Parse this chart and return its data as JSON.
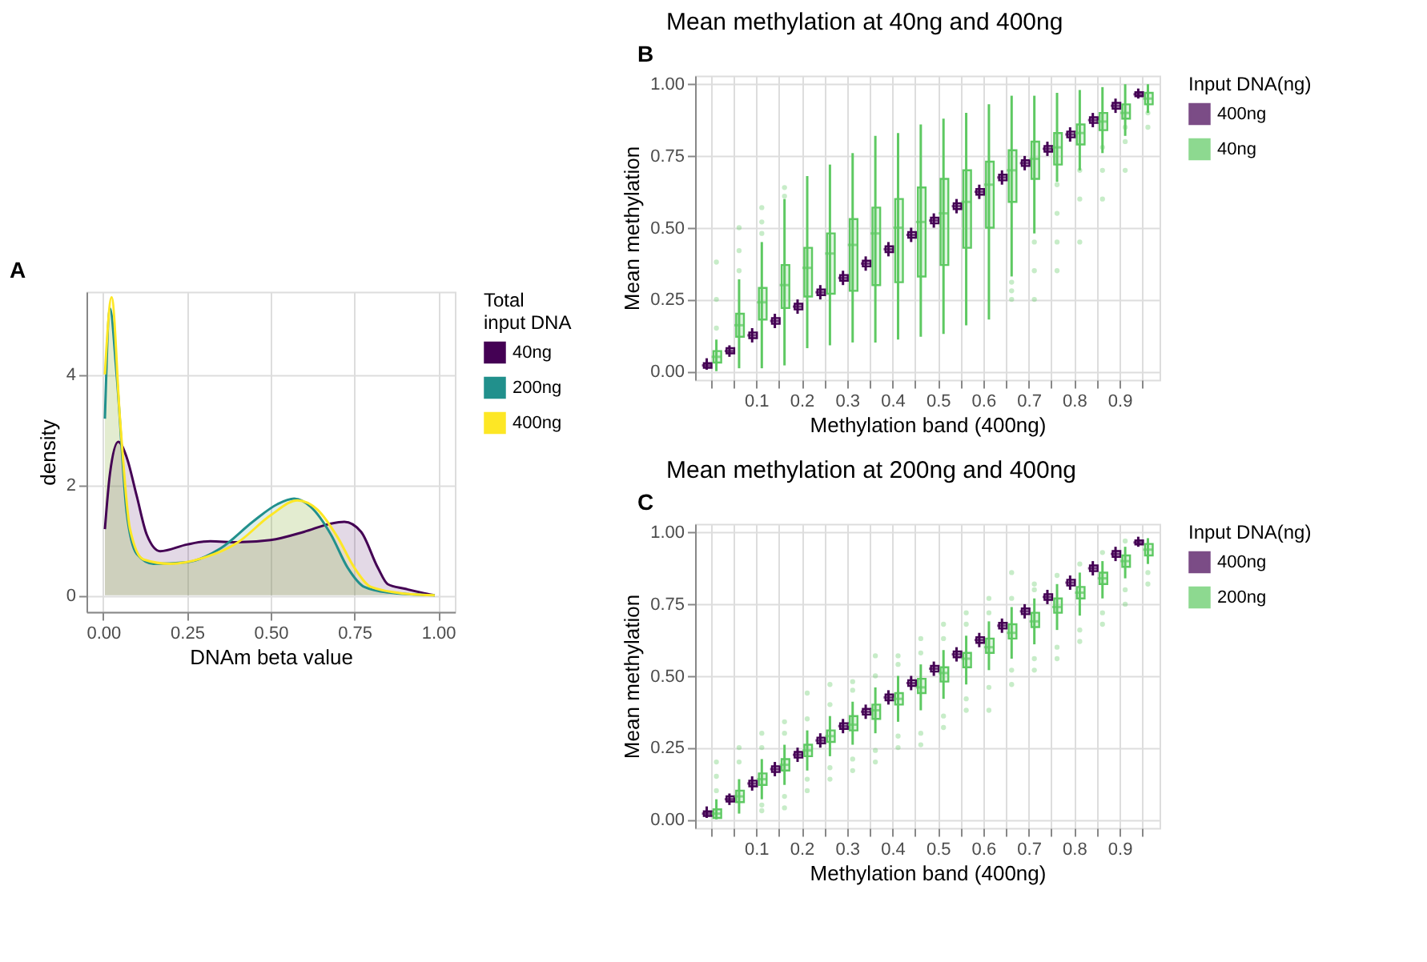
{
  "chart_data": [
    {
      "type": "area",
      "annotations": [
        "A"
      ],
      "xlabel": "DNAm beta value",
      "ylabel": "density",
      "legend_title": "Total input DNA",
      "legend": "right",
      "grid": true,
      "xlim": [
        -0.05,
        1.05
      ],
      "xticks": [
        {
          "value": 0,
          "label": "0.00"
        },
        {
          "value": 0.25,
          "label": "0.25"
        },
        {
          "value": 0.5,
          "label": "0.50"
        },
        {
          "value": 0.75,
          "label": "0.75"
        },
        {
          "value": 1,
          "label": "1.00"
        }
      ],
      "ylim": [
        -0.3,
        5.5
      ],
      "yticks": [
        0,
        2,
        4
      ],
      "series": [
        {
          "name": "40ng",
          "color": "#440154",
          "x": [
            0.005,
            0.02,
            0.045,
            0.07,
            0.1,
            0.13,
            0.17,
            0.25,
            0.32,
            0.4,
            0.5,
            0.6,
            0.68,
            0.72,
            0.77,
            0.82,
            0.85,
            0.9,
            0.95,
            0.99
          ],
          "values": [
            1.2,
            2.2,
            2.78,
            2.5,
            1.8,
            1.1,
            0.8,
            0.92,
            0.98,
            0.96,
            1.0,
            1.15,
            1.3,
            1.33,
            1.15,
            0.5,
            0.2,
            0.12,
            0.05,
            0.0
          ]
        },
        {
          "name": "200ng",
          "color": "#21908c",
          "x": [
            0.005,
            0.02,
            0.04,
            0.07,
            0.1,
            0.15,
            0.25,
            0.35,
            0.45,
            0.52,
            0.57,
            0.62,
            0.68,
            0.73,
            0.78,
            0.85,
            0.99
          ],
          "values": [
            3.2,
            5.2,
            4.0,
            1.5,
            0.75,
            0.57,
            0.6,
            0.85,
            1.35,
            1.65,
            1.75,
            1.6,
            1.1,
            0.5,
            0.15,
            0.05,
            0.0
          ]
        },
        {
          "name": "400ng",
          "color": "#fde725",
          "x": [
            0.005,
            0.025,
            0.05,
            0.08,
            0.12,
            0.2,
            0.3,
            0.4,
            0.5,
            0.58,
            0.64,
            0.7,
            0.75,
            0.8,
            0.9,
            0.99
          ],
          "values": [
            4.0,
            5.4,
            3.2,
            1.2,
            0.65,
            0.57,
            0.68,
            0.95,
            1.45,
            1.72,
            1.55,
            1.05,
            0.5,
            0.15,
            0.03,
            0.0
          ]
        }
      ]
    },
    {
      "type": "box",
      "annotations": [
        "B"
      ],
      "title": "Mean methylation at 40ng and 400ng",
      "xlabel": "Methylation band (400ng)",
      "ylabel": "Mean methylation",
      "legend_title": "Input DNA(ng)",
      "legend": "right",
      "grid": true,
      "categories": [
        null,
        null,
        "0.1",
        null,
        "0.2",
        null,
        "0.3",
        null,
        "0.4",
        null,
        "0.5",
        null,
        "0.6",
        null,
        "0.7",
        null,
        "0.8",
        null,
        "0.9",
        null
      ],
      "ylim": [
        -0.03,
        1.03
      ],
      "yticks": [
        {
          "value": 0,
          "label": "0.00"
        },
        {
          "value": 0.25,
          "label": "0.25"
        },
        {
          "value": 0.5,
          "label": "0.50"
        },
        {
          "value": 0.75,
          "label": "0.75"
        },
        {
          "value": 1,
          "label": "1.00"
        }
      ],
      "series": [
        {
          "name": "400ng",
          "color": "#440154",
          "boxes": [
            {
              "low": 0.005,
              "q1": 0.012,
              "median": 0.02,
              "q3": 0.028,
              "high": 0.045
            },
            {
              "low": 0.05,
              "q1": 0.062,
              "median": 0.07,
              "q3": 0.08,
              "high": 0.09
            },
            {
              "low": 0.1,
              "q1": 0.115,
              "median": 0.125,
              "q3": 0.135,
              "high": 0.15
            },
            {
              "low": 0.15,
              "q1": 0.165,
              "median": 0.175,
              "q3": 0.185,
              "high": 0.2
            },
            {
              "low": 0.2,
              "q1": 0.215,
              "median": 0.225,
              "q3": 0.235,
              "high": 0.25
            },
            {
              "low": 0.25,
              "q1": 0.265,
              "median": 0.275,
              "q3": 0.285,
              "high": 0.3
            },
            {
              "low": 0.3,
              "q1": 0.315,
              "median": 0.325,
              "q3": 0.335,
              "high": 0.35
            },
            {
              "low": 0.35,
              "q1": 0.365,
              "median": 0.375,
              "q3": 0.385,
              "high": 0.4
            },
            {
              "low": 0.4,
              "q1": 0.415,
              "median": 0.425,
              "q3": 0.435,
              "high": 0.45
            },
            {
              "low": 0.45,
              "q1": 0.465,
              "median": 0.475,
              "q3": 0.485,
              "high": 0.5
            },
            {
              "low": 0.5,
              "q1": 0.515,
              "median": 0.525,
              "q3": 0.535,
              "high": 0.55
            },
            {
              "low": 0.55,
              "q1": 0.565,
              "median": 0.575,
              "q3": 0.585,
              "high": 0.6
            },
            {
              "low": 0.6,
              "q1": 0.615,
              "median": 0.625,
              "q3": 0.635,
              "high": 0.65
            },
            {
              "low": 0.65,
              "q1": 0.665,
              "median": 0.675,
              "q3": 0.685,
              "high": 0.7
            },
            {
              "low": 0.7,
              "q1": 0.715,
              "median": 0.725,
              "q3": 0.735,
              "high": 0.75
            },
            {
              "low": 0.75,
              "q1": 0.765,
              "median": 0.775,
              "q3": 0.785,
              "high": 0.8
            },
            {
              "low": 0.8,
              "q1": 0.815,
              "median": 0.825,
              "q3": 0.835,
              "high": 0.85
            },
            {
              "low": 0.85,
              "q1": 0.865,
              "median": 0.875,
              "q3": 0.885,
              "high": 0.9
            },
            {
              "low": 0.9,
              "q1": 0.915,
              "median": 0.925,
              "q3": 0.935,
              "high": 0.95
            },
            {
              "low": 0.95,
              "q1": 0.958,
              "median": 0.965,
              "q3": 0.972,
              "high": 0.985
            }
          ]
        },
        {
          "name": "40ng",
          "color": "#5ec962",
          "boxes": [
            {
              "low": 0.0,
              "q1": 0.03,
              "median": 0.05,
              "q3": 0.07,
              "high": 0.11,
              "outliers": [
                0.15,
                0.25,
                0.38
              ]
            },
            {
              "low": 0.01,
              "q1": 0.12,
              "median": 0.16,
              "q3": 0.2,
              "high": 0.32,
              "outliers": [
                0.35,
                0.42,
                0.5
              ]
            },
            {
              "low": 0.01,
              "q1": 0.18,
              "median": 0.24,
              "q3": 0.29,
              "high": 0.45,
              "outliers": [
                0.48,
                0.52,
                0.57
              ]
            },
            {
              "low": 0.02,
              "q1": 0.22,
              "median": 0.3,
              "q3": 0.37,
              "high": 0.6,
              "outliers": [
                0.61,
                0.64
              ]
            },
            {
              "low": 0.08,
              "q1": 0.26,
              "median": 0.36,
              "q3": 0.43,
              "high": 0.68
            },
            {
              "low": 0.09,
              "q1": 0.27,
              "median": 0.41,
              "q3": 0.48,
              "high": 0.72
            },
            {
              "low": 0.1,
              "q1": 0.28,
              "median": 0.44,
              "q3": 0.53,
              "high": 0.76
            },
            {
              "low": 0.1,
              "q1": 0.3,
              "median": 0.48,
              "q3": 0.57,
              "high": 0.82
            },
            {
              "low": 0.11,
              "q1": 0.31,
              "median": 0.5,
              "q3": 0.6,
              "high": 0.83
            },
            {
              "low": 0.12,
              "q1": 0.33,
              "median": 0.52,
              "q3": 0.64,
              "high": 0.86
            },
            {
              "low": 0.13,
              "q1": 0.37,
              "median": 0.55,
              "q3": 0.67,
              "high": 0.88
            },
            {
              "low": 0.16,
              "q1": 0.43,
              "median": 0.59,
              "q3": 0.7,
              "high": 0.9
            },
            {
              "low": 0.18,
              "q1": 0.5,
              "median": 0.65,
              "q3": 0.73,
              "high": 0.93
            },
            {
              "low": 0.33,
              "q1": 0.59,
              "median": 0.7,
              "q3": 0.77,
              "high": 0.96,
              "outliers": [
                0.25,
                0.28,
                0.31
              ]
            },
            {
              "low": 0.48,
              "q1": 0.67,
              "median": 0.74,
              "q3": 0.8,
              "high": 0.96,
              "outliers": [
                0.25,
                0.35,
                0.45
              ]
            },
            {
              "low": 0.66,
              "q1": 0.72,
              "median": 0.78,
              "q3": 0.83,
              "high": 0.97,
              "outliers": [
                0.35,
                0.45,
                0.55,
                0.65
              ]
            },
            {
              "low": 0.7,
              "q1": 0.79,
              "median": 0.83,
              "q3": 0.86,
              "high": 0.98,
              "outliers": [
                0.45,
                0.6,
                0.7
              ]
            },
            {
              "low": 0.76,
              "q1": 0.84,
              "median": 0.87,
              "q3": 0.9,
              "high": 0.99,
              "outliers": [
                0.6,
                0.7,
                0.78
              ]
            },
            {
              "low": 0.82,
              "q1": 0.88,
              "median": 0.9,
              "q3": 0.93,
              "high": 1.0,
              "outliers": [
                0.7,
                0.8,
                0.85
              ]
            },
            {
              "low": 0.9,
              "q1": 0.93,
              "median": 0.95,
              "q3": 0.97,
              "high": 1.0,
              "outliers": [
                0.85,
                0.9
              ]
            }
          ]
        }
      ]
    },
    {
      "type": "box",
      "annotations": [
        "C"
      ],
      "title": "Mean methylation at 200ng and 400ng",
      "xlabel": "Methylation band (400ng)",
      "ylabel": "Mean methylation",
      "legend_title": "Input DNA(ng)",
      "legend": "right",
      "grid": true,
      "categories": [
        null,
        null,
        "0.1",
        null,
        "0.2",
        null,
        "0.3",
        null,
        "0.4",
        null,
        "0.5",
        null,
        "0.6",
        null,
        "0.7",
        null,
        "0.8",
        null,
        "0.9",
        null
      ],
      "ylim": [
        -0.03,
        1.03
      ],
      "yticks": [
        {
          "value": 0,
          "label": "0.00"
        },
        {
          "value": 0.25,
          "label": "0.25"
        },
        {
          "value": 0.5,
          "label": "0.50"
        },
        {
          "value": 0.75,
          "label": "0.75"
        },
        {
          "value": 1,
          "label": "1.00"
        }
      ],
      "series": [
        {
          "name": "400ng",
          "color": "#440154",
          "boxes": [
            {
              "low": 0.005,
              "q1": 0.012,
              "median": 0.02,
              "q3": 0.028,
              "high": 0.045
            },
            {
              "low": 0.05,
              "q1": 0.062,
              "median": 0.07,
              "q3": 0.08,
              "high": 0.09
            },
            {
              "low": 0.1,
              "q1": 0.115,
              "median": 0.125,
              "q3": 0.135,
              "high": 0.15
            },
            {
              "low": 0.15,
              "q1": 0.165,
              "median": 0.175,
              "q3": 0.185,
              "high": 0.2
            },
            {
              "low": 0.2,
              "q1": 0.215,
              "median": 0.225,
              "q3": 0.235,
              "high": 0.25
            },
            {
              "low": 0.25,
              "q1": 0.265,
              "median": 0.275,
              "q3": 0.285,
              "high": 0.3
            },
            {
              "low": 0.3,
              "q1": 0.315,
              "median": 0.325,
              "q3": 0.335,
              "high": 0.35
            },
            {
              "low": 0.35,
              "q1": 0.365,
              "median": 0.375,
              "q3": 0.385,
              "high": 0.4
            },
            {
              "low": 0.4,
              "q1": 0.415,
              "median": 0.425,
              "q3": 0.435,
              "high": 0.45
            },
            {
              "low": 0.45,
              "q1": 0.465,
              "median": 0.475,
              "q3": 0.485,
              "high": 0.5
            },
            {
              "low": 0.5,
              "q1": 0.515,
              "median": 0.525,
              "q3": 0.535,
              "high": 0.55
            },
            {
              "low": 0.55,
              "q1": 0.565,
              "median": 0.575,
              "q3": 0.585,
              "high": 0.6
            },
            {
              "low": 0.6,
              "q1": 0.615,
              "median": 0.625,
              "q3": 0.635,
              "high": 0.65
            },
            {
              "low": 0.65,
              "q1": 0.665,
              "median": 0.675,
              "q3": 0.685,
              "high": 0.7
            },
            {
              "low": 0.7,
              "q1": 0.715,
              "median": 0.725,
              "q3": 0.735,
              "high": 0.75
            },
            {
              "low": 0.75,
              "q1": 0.765,
              "median": 0.775,
              "q3": 0.785,
              "high": 0.8
            },
            {
              "low": 0.8,
              "q1": 0.815,
              "median": 0.825,
              "q3": 0.835,
              "high": 0.85
            },
            {
              "low": 0.85,
              "q1": 0.865,
              "median": 0.875,
              "q3": 0.885,
              "high": 0.9
            },
            {
              "low": 0.9,
              "q1": 0.915,
              "median": 0.925,
              "q3": 0.935,
              "high": 0.95
            },
            {
              "low": 0.95,
              "q1": 0.958,
              "median": 0.965,
              "q3": 0.972,
              "high": 0.985
            }
          ]
        },
        {
          "name": "200ng",
          "color": "#5ec962",
          "boxes": [
            {
              "low": 0.0,
              "q1": 0.005,
              "median": 0.02,
              "q3": 0.035,
              "high": 0.07,
              "outliers": [
                0.1,
                0.15,
                0.2
              ]
            },
            {
              "low": 0.02,
              "q1": 0.06,
              "median": 0.08,
              "q3": 0.1,
              "high": 0.14,
              "outliers": [
                0.2,
                0.25
              ]
            },
            {
              "low": 0.07,
              "q1": 0.12,
              "median": 0.14,
              "q3": 0.16,
              "high": 0.21,
              "outliers": [
                0.03,
                0.05,
                0.25,
                0.3
              ]
            },
            {
              "low": 0.12,
              "q1": 0.17,
              "median": 0.19,
              "q3": 0.21,
              "high": 0.26,
              "outliers": [
                0.04,
                0.08,
                0.3,
                0.34
              ]
            },
            {
              "low": 0.17,
              "q1": 0.22,
              "median": 0.24,
              "q3": 0.26,
              "high": 0.31,
              "outliers": [
                0.1,
                0.14,
                0.35,
                0.44
              ]
            },
            {
              "low": 0.22,
              "q1": 0.27,
              "median": 0.29,
              "q3": 0.31,
              "high": 0.36,
              "outliers": [
                0.14,
                0.18,
                0.4,
                0.47
              ]
            },
            {
              "low": 0.26,
              "q1": 0.31,
              "median": 0.33,
              "q3": 0.36,
              "high": 0.41,
              "outliers": [
                0.17,
                0.21,
                0.45,
                0.48
              ]
            },
            {
              "low": 0.3,
              "q1": 0.35,
              "median": 0.38,
              "q3": 0.4,
              "high": 0.46,
              "outliers": [
                0.2,
                0.24,
                0.5,
                0.57
              ]
            },
            {
              "low": 0.34,
              "q1": 0.4,
              "median": 0.42,
              "q3": 0.44,
              "high": 0.5,
              "outliers": [
                0.25,
                0.29,
                0.54,
                0.57
              ]
            },
            {
              "low": 0.38,
              "q1": 0.44,
              "median": 0.46,
              "q3": 0.49,
              "high": 0.54,
              "outliers": [
                0.26,
                0.3,
                0.58,
                0.63
              ]
            },
            {
              "low": 0.42,
              "q1": 0.48,
              "median": 0.51,
              "q3": 0.53,
              "high": 0.59,
              "outliers": [
                0.32,
                0.36,
                0.63,
                0.68
              ]
            },
            {
              "low": 0.47,
              "q1": 0.53,
              "median": 0.56,
              "q3": 0.58,
              "high": 0.64,
              "outliers": [
                0.38,
                0.42,
                0.68,
                0.72
              ]
            },
            {
              "low": 0.52,
              "q1": 0.58,
              "median": 0.6,
              "q3": 0.63,
              "high": 0.69,
              "outliers": [
                0.38,
                0.46,
                0.72,
                0.77
              ]
            },
            {
              "low": 0.56,
              "q1": 0.63,
              "median": 0.65,
              "q3": 0.68,
              "high": 0.74,
              "outliers": [
                0.47,
                0.52,
                0.77,
                0.86
              ]
            },
            {
              "low": 0.61,
              "q1": 0.67,
              "median": 0.69,
              "q3": 0.72,
              "high": 0.77,
              "outliers": [
                0.52,
                0.56,
                0.8,
                0.82
              ]
            },
            {
              "low": 0.66,
              "q1": 0.72,
              "median": 0.74,
              "q3": 0.77,
              "high": 0.82,
              "outliers": [
                0.56,
                0.6,
                0.85
              ]
            },
            {
              "low": 0.71,
              "q1": 0.77,
              "median": 0.79,
              "q3": 0.81,
              "high": 0.86,
              "outliers": [
                0.62,
                0.66,
                0.89
              ]
            },
            {
              "low": 0.77,
              "q1": 0.82,
              "median": 0.84,
              "q3": 0.86,
              "high": 0.9,
              "outliers": [
                0.68,
                0.72,
                0.93
              ]
            },
            {
              "low": 0.84,
              "q1": 0.88,
              "median": 0.9,
              "q3": 0.92,
              "high": 0.95,
              "outliers": [
                0.75,
                0.8,
                0.97
              ]
            },
            {
              "low": 0.89,
              "q1": 0.92,
              "median": 0.94,
              "q3": 0.96,
              "high": 0.98,
              "outliers": [
                0.82,
                0.86
              ]
            }
          ]
        }
      ]
    }
  ]
}
